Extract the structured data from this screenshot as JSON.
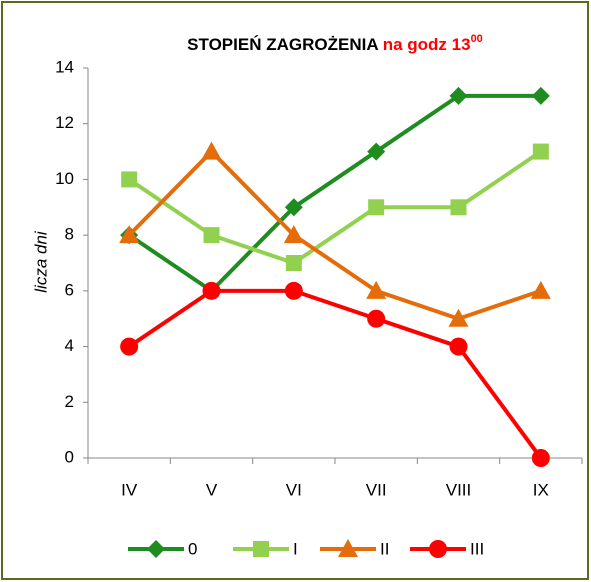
{
  "chart_data": {
    "type": "line",
    "title": "STOPIEŃ ZAGROŻENIA",
    "title_suffix": "na godz 13",
    "title_superscript": "00",
    "ylabel": "licza dni",
    "categories": [
      "IV",
      "V",
      "VI",
      "VII",
      "VIII",
      "IX"
    ],
    "series": [
      {
        "name": "0",
        "color": "#1e8c1e",
        "marker": "diamond",
        "values": [
          8,
          6,
          9,
          11,
          13,
          13
        ]
      },
      {
        "name": "I",
        "color": "#92d050",
        "marker": "square",
        "values": [
          10,
          8,
          7,
          9,
          9,
          11
        ]
      },
      {
        "name": "II",
        "color": "#e46c0a",
        "marker": "triangle",
        "values": [
          8,
          11,
          8,
          6,
          5,
          6
        ]
      },
      {
        "name": "III",
        "color": "#ff0000",
        "marker": "circle",
        "values": [
          4,
          6,
          6,
          5,
          4,
          0
        ]
      }
    ],
    "ylim": [
      0,
      14
    ],
    "yticks": [
      0,
      2,
      4,
      6,
      8,
      10,
      12,
      14
    ],
    "grid": false,
    "legend": "bottom"
  }
}
